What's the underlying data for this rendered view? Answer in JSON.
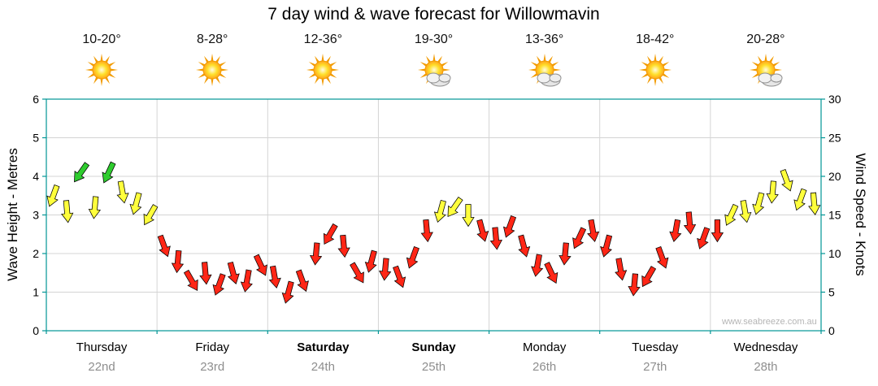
{
  "title": "7 day wind & wave forecast for Willowmavin",
  "watermark": "www.seabreeze.com.au",
  "days": [
    {
      "name": "Thursday",
      "date": "22nd",
      "temp": "10-20°",
      "icon": "sun",
      "bold": false
    },
    {
      "name": "Friday",
      "date": "23rd",
      "temp": "8-28°",
      "icon": "sun",
      "bold": false
    },
    {
      "name": "Saturday",
      "date": "24th",
      "temp": "12-36°",
      "icon": "sun",
      "bold": true
    },
    {
      "name": "Sunday",
      "date": "25th",
      "temp": "19-30°",
      "icon": "sun-cloud",
      "bold": true
    },
    {
      "name": "Monday",
      "date": "26th",
      "temp": "13-36°",
      "icon": "sun-cloud",
      "bold": false
    },
    {
      "name": "Tuesday",
      "date": "27th",
      "temp": "18-42°",
      "icon": "sun",
      "bold": false
    },
    {
      "name": "Wednesday",
      "date": "28th",
      "temp": "20-28°",
      "icon": "sun-cloud",
      "bold": false
    }
  ],
  "axes": {
    "left_label": "Wave Height - Metres",
    "right_label": "Wind Speed - Knots",
    "left_ticks": [
      0,
      1,
      2,
      3,
      4,
      5,
      6
    ],
    "right_ticks": [
      0,
      5,
      10,
      15,
      20,
      25,
      30
    ],
    "left_range": [
      0,
      6
    ],
    "right_range": [
      0,
      30
    ]
  },
  "chart_data": {
    "type": "wind-arrow-series",
    "title": "7 day wind & wave forecast for Willowmavin",
    "unit": "knots",
    "points_per_day": 8,
    "categories": [
      "Thursday 22nd",
      "Friday 23rd",
      "Saturday 24th",
      "Sunday 25th",
      "Monday 26th",
      "Tuesday 27th",
      "Wednesday 28th"
    ],
    "values": [
      17.5,
      15.5,
      20.5,
      16,
      20.5,
      18,
      16.5,
      15,
      11,
      9,
      6.5,
      7.5,
      6,
      7.5,
      6.5,
      8.5,
      7,
      5,
      6.5,
      10,
      12.5,
      11,
      7.5,
      9,
      8,
      7,
      9.5,
      13,
      15.5,
      16,
      15,
      13,
      12,
      13.5,
      11,
      8.5,
      7.5,
      10,
      12,
      13,
      11,
      8,
      6,
      7,
      9.5,
      13,
      14,
      12,
      13,
      15,
      15.5,
      16.5,
      18,
      19.5,
      17,
      16.5
    ],
    "directions_deg": [
      200,
      175,
      215,
      185,
      205,
      170,
      195,
      210,
      160,
      185,
      150,
      175,
      200,
      165,
      190,
      155,
      170,
      195,
      160,
      185,
      210,
      175,
      150,
      195,
      185,
      160,
      200,
      175,
      195,
      215,
      180,
      165,
      175,
      200,
      165,
      190,
      155,
      185,
      205,
      170,
      195,
      170,
      185,
      210,
      160,
      190,
      175,
      200,
      180,
      205,
      170,
      195,
      185,
      160,
      200,
      175
    ],
    "color_thresholds": {
      "green_min": 20,
      "yellow_min": 14.5
    },
    "colors": {
      "green": "#2ecc2e",
      "yellow": "#ffff3c",
      "red": "#ff2616",
      "outline": "#000000"
    },
    "axis_color": "#009595",
    "grid_color": "#d4d4d4",
    "ylim_knots": [
      0,
      30
    ],
    "ylim_metres": [
      0,
      6
    ],
    "grid": true
  }
}
